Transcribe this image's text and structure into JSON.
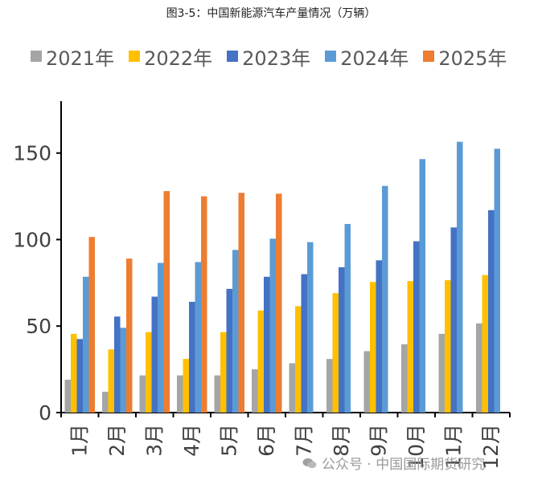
{
  "title": "图3-5：中国新能源汽车产量情况（万辆）",
  "watermark": "公众号 · 中国国际期货研究",
  "chart_data": {
    "type": "bar",
    "title": "图3-5：中国新能源汽车产量情况（万辆）",
    "xlabel": "",
    "ylabel": "",
    "ylim": [
      0,
      180
    ],
    "yticks": [
      0,
      50,
      100,
      150
    ],
    "grid": false,
    "legend": "top",
    "categories": [
      "1月",
      "2月",
      "3月",
      "4月",
      "5月",
      "6月",
      "7月",
      "8月",
      "9月",
      "10月",
      "11月",
      "12月"
    ],
    "series": [
      {
        "name": "2021年",
        "color": "#a5a5a5",
        "values": [
          19,
          12,
          21.5,
          21.5,
          21.5,
          25,
          28.5,
          31,
          35.5,
          39.5,
          45.5,
          51.5
        ]
      },
      {
        "name": "2022年",
        "color": "#ffc000",
        "values": [
          45.5,
          36.5,
          46.5,
          31,
          46.5,
          59,
          61.5,
          69,
          75.5,
          76,
          76.5,
          79.5
        ]
      },
      {
        "name": "2023年",
        "color": "#4472c4",
        "values": [
          42.5,
          55.5,
          67,
          64,
          71.5,
          78.5,
          80,
          84,
          88,
          99,
          107,
          117
        ]
      },
      {
        "name": "2024年",
        "color": "#5b9bd5",
        "values": [
          78.5,
          49,
          86.5,
          87,
          94,
          100.5,
          98.5,
          109,
          131,
          146.5,
          156.5,
          152.5
        ]
      },
      {
        "name": "2025年",
        "color": "#ed7d31",
        "values": [
          101.5,
          89,
          128,
          125,
          127,
          126.5,
          null,
          null,
          null,
          null,
          null,
          null
        ]
      }
    ]
  }
}
